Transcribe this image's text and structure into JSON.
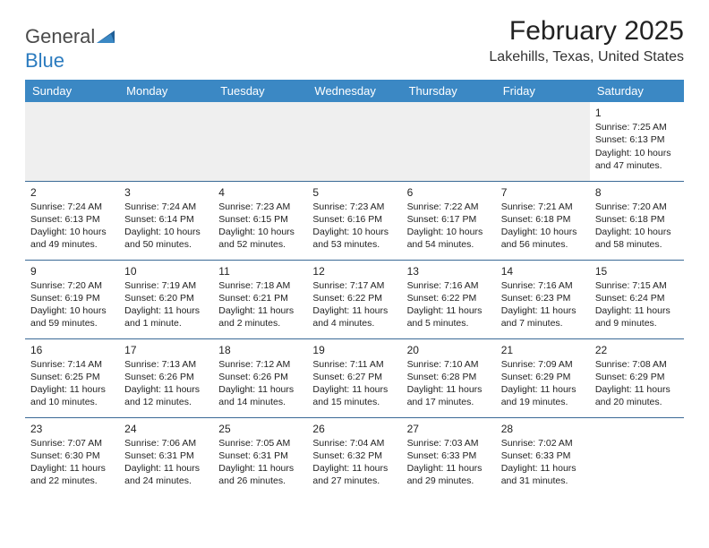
{
  "logo": {
    "part1": "General",
    "part2": "Blue"
  },
  "title": "February 2025",
  "location": "Lakehills, Texas, United States",
  "colors": {
    "header_bg": "#3b88c4",
    "header_text": "#ffffff",
    "border": "#3b6a96",
    "logo_blue": "#2b7bbf",
    "empty_bg": "#efefef"
  },
  "weekdays": [
    "Sunday",
    "Monday",
    "Tuesday",
    "Wednesday",
    "Thursday",
    "Friday",
    "Saturday"
  ],
  "weeks": [
    [
      null,
      null,
      null,
      null,
      null,
      null,
      {
        "d": "1",
        "sr": "Sunrise: 7:25 AM",
        "ss": "Sunset: 6:13 PM",
        "dl": "Daylight: 10 hours and 47 minutes."
      }
    ],
    [
      {
        "d": "2",
        "sr": "Sunrise: 7:24 AM",
        "ss": "Sunset: 6:13 PM",
        "dl": "Daylight: 10 hours and 49 minutes."
      },
      {
        "d": "3",
        "sr": "Sunrise: 7:24 AM",
        "ss": "Sunset: 6:14 PM",
        "dl": "Daylight: 10 hours and 50 minutes."
      },
      {
        "d": "4",
        "sr": "Sunrise: 7:23 AM",
        "ss": "Sunset: 6:15 PM",
        "dl": "Daylight: 10 hours and 52 minutes."
      },
      {
        "d": "5",
        "sr": "Sunrise: 7:23 AM",
        "ss": "Sunset: 6:16 PM",
        "dl": "Daylight: 10 hours and 53 minutes."
      },
      {
        "d": "6",
        "sr": "Sunrise: 7:22 AM",
        "ss": "Sunset: 6:17 PM",
        "dl": "Daylight: 10 hours and 54 minutes."
      },
      {
        "d": "7",
        "sr": "Sunrise: 7:21 AM",
        "ss": "Sunset: 6:18 PM",
        "dl": "Daylight: 10 hours and 56 minutes."
      },
      {
        "d": "8",
        "sr": "Sunrise: 7:20 AM",
        "ss": "Sunset: 6:18 PM",
        "dl": "Daylight: 10 hours and 58 minutes."
      }
    ],
    [
      {
        "d": "9",
        "sr": "Sunrise: 7:20 AM",
        "ss": "Sunset: 6:19 PM",
        "dl": "Daylight: 10 hours and 59 minutes."
      },
      {
        "d": "10",
        "sr": "Sunrise: 7:19 AM",
        "ss": "Sunset: 6:20 PM",
        "dl": "Daylight: 11 hours and 1 minute."
      },
      {
        "d": "11",
        "sr": "Sunrise: 7:18 AM",
        "ss": "Sunset: 6:21 PM",
        "dl": "Daylight: 11 hours and 2 minutes."
      },
      {
        "d": "12",
        "sr": "Sunrise: 7:17 AM",
        "ss": "Sunset: 6:22 PM",
        "dl": "Daylight: 11 hours and 4 minutes."
      },
      {
        "d": "13",
        "sr": "Sunrise: 7:16 AM",
        "ss": "Sunset: 6:22 PM",
        "dl": "Daylight: 11 hours and 5 minutes."
      },
      {
        "d": "14",
        "sr": "Sunrise: 7:16 AM",
        "ss": "Sunset: 6:23 PM",
        "dl": "Daylight: 11 hours and 7 minutes."
      },
      {
        "d": "15",
        "sr": "Sunrise: 7:15 AM",
        "ss": "Sunset: 6:24 PM",
        "dl": "Daylight: 11 hours and 9 minutes."
      }
    ],
    [
      {
        "d": "16",
        "sr": "Sunrise: 7:14 AM",
        "ss": "Sunset: 6:25 PM",
        "dl": "Daylight: 11 hours and 10 minutes."
      },
      {
        "d": "17",
        "sr": "Sunrise: 7:13 AM",
        "ss": "Sunset: 6:26 PM",
        "dl": "Daylight: 11 hours and 12 minutes."
      },
      {
        "d": "18",
        "sr": "Sunrise: 7:12 AM",
        "ss": "Sunset: 6:26 PM",
        "dl": "Daylight: 11 hours and 14 minutes."
      },
      {
        "d": "19",
        "sr": "Sunrise: 7:11 AM",
        "ss": "Sunset: 6:27 PM",
        "dl": "Daylight: 11 hours and 15 minutes."
      },
      {
        "d": "20",
        "sr": "Sunrise: 7:10 AM",
        "ss": "Sunset: 6:28 PM",
        "dl": "Daylight: 11 hours and 17 minutes."
      },
      {
        "d": "21",
        "sr": "Sunrise: 7:09 AM",
        "ss": "Sunset: 6:29 PM",
        "dl": "Daylight: 11 hours and 19 minutes."
      },
      {
        "d": "22",
        "sr": "Sunrise: 7:08 AM",
        "ss": "Sunset: 6:29 PM",
        "dl": "Daylight: 11 hours and 20 minutes."
      }
    ],
    [
      {
        "d": "23",
        "sr": "Sunrise: 7:07 AM",
        "ss": "Sunset: 6:30 PM",
        "dl": "Daylight: 11 hours and 22 minutes."
      },
      {
        "d": "24",
        "sr": "Sunrise: 7:06 AM",
        "ss": "Sunset: 6:31 PM",
        "dl": "Daylight: 11 hours and 24 minutes."
      },
      {
        "d": "25",
        "sr": "Sunrise: 7:05 AM",
        "ss": "Sunset: 6:31 PM",
        "dl": "Daylight: 11 hours and 26 minutes."
      },
      {
        "d": "26",
        "sr": "Sunrise: 7:04 AM",
        "ss": "Sunset: 6:32 PM",
        "dl": "Daylight: 11 hours and 27 minutes."
      },
      {
        "d": "27",
        "sr": "Sunrise: 7:03 AM",
        "ss": "Sunset: 6:33 PM",
        "dl": "Daylight: 11 hours and 29 minutes."
      },
      {
        "d": "28",
        "sr": "Sunrise: 7:02 AM",
        "ss": "Sunset: 6:33 PM",
        "dl": "Daylight: 11 hours and 31 minutes."
      },
      null
    ]
  ]
}
